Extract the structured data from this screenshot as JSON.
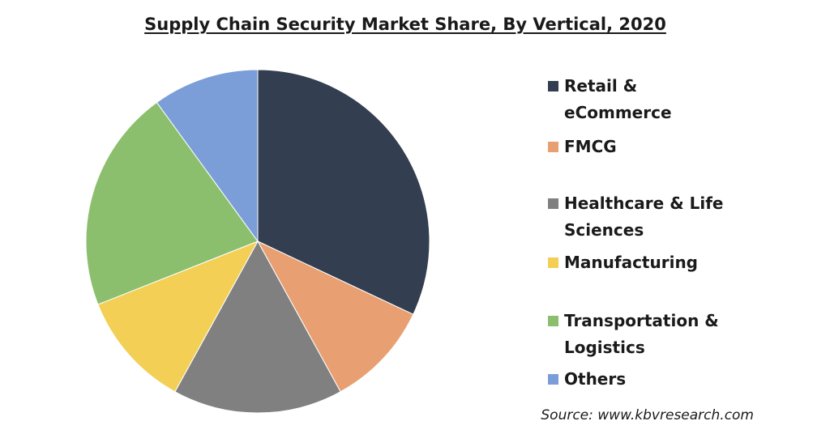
{
  "chart_data": {
    "type": "pie",
    "title": "Supply Chain Security Market Share, By Vertical, 2020",
    "categories": [
      "Retail & eCommerce",
      "FMCG",
      "Healthcare & Life Sciences",
      "Manufacturing",
      "Transportation & Logistics",
      "Others"
    ],
    "values": [
      32,
      10,
      16,
      11,
      21,
      10
    ],
    "colors": [
      "#333f50",
      "#e8a072",
      "#808080",
      "#f3cf56",
      "#8cbf6d",
      "#7b9ed8"
    ],
    "legend": "right"
  },
  "source": "Source: www.kbvresearch.com"
}
